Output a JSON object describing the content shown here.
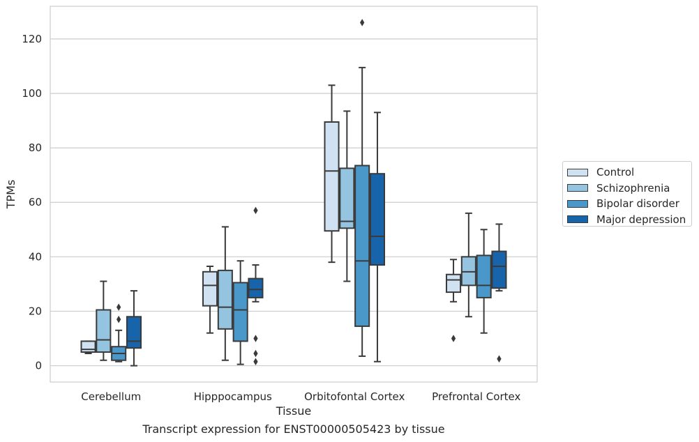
{
  "chart_data": {
    "type": "box",
    "caption": "Transcript expression for ENST00000505423 by tissue",
    "xlabel": "Tissue",
    "ylabel": "TPMs",
    "ylim": [
      -6,
      132
    ],
    "yticks": [
      0,
      20,
      40,
      60,
      80,
      100,
      120
    ],
    "grid": true,
    "legend_position": "right",
    "categories": [
      "Cerebellum",
      "Hipppocampus",
      "Orbitofontal Cortex",
      "Prefrontal Cortex"
    ],
    "series": [
      {
        "name": "Control",
        "color": "#d0e1f2",
        "boxes": [
          {
            "whisker_low": 4.5,
            "q1": 5,
            "median": 6,
            "q3": 9,
            "whisker_high": 9,
            "outliers": []
          },
          {
            "whisker_low": 12,
            "q1": 22,
            "median": 29.5,
            "q3": 34.5,
            "whisker_high": 36.5,
            "outliers": []
          },
          {
            "whisker_low": 38,
            "q1": 49.5,
            "median": 71.5,
            "q3": 89.5,
            "whisker_high": 103,
            "outliers": []
          },
          {
            "whisker_low": 23.5,
            "q1": 27,
            "median": 31.5,
            "q3": 33.5,
            "whisker_high": 39,
            "outliers": [
              10
            ]
          }
        ]
      },
      {
        "name": "Schizophrenia",
        "color": "#94c4df",
        "boxes": [
          {
            "whisker_low": 2,
            "q1": 5,
            "median": 9.5,
            "q3": 20.5,
            "whisker_high": 31,
            "outliers": []
          },
          {
            "whisker_low": 2,
            "q1": 13.5,
            "median": 21.5,
            "q3": 35,
            "whisker_high": 51,
            "outliers": []
          },
          {
            "whisker_low": 31,
            "q1": 50.5,
            "median": 53,
            "q3": 72.5,
            "whisker_high": 93.5,
            "outliers": []
          },
          {
            "whisker_low": 18,
            "q1": 29.5,
            "median": 34.5,
            "q3": 40,
            "whisker_high": 56,
            "outliers": []
          }
        ]
      },
      {
        "name": "Bipolar disorder",
        "color": "#4a98c9",
        "boxes": [
          {
            "whisker_low": 1.5,
            "q1": 2,
            "median": 4.5,
            "q3": 7,
            "whisker_high": 13,
            "outliers": [
              17,
              21.5
            ]
          },
          {
            "whisker_low": 0.5,
            "q1": 9,
            "median": 20.5,
            "q3": 30.5,
            "whisker_high": 38.5,
            "outliers": []
          },
          {
            "whisker_low": 3.5,
            "q1": 14.5,
            "median": 38.5,
            "q3": 73.5,
            "whisker_high": 109.5,
            "outliers": [
              126
            ]
          },
          {
            "whisker_low": 12,
            "q1": 25,
            "median": 29.5,
            "q3": 40.5,
            "whisker_high": 50,
            "outliers": []
          }
        ]
      },
      {
        "name": "Major depression",
        "color": "#1764ab",
        "boxes": [
          {
            "whisker_low": 0,
            "q1": 6.5,
            "median": 9,
            "q3": 18,
            "whisker_high": 27.5,
            "outliers": []
          },
          {
            "whisker_low": 23.5,
            "q1": 25,
            "median": 28,
            "q3": 32,
            "whisker_high": 37,
            "outliers": [
              57,
              10,
              4.5,
              1.5
            ]
          },
          {
            "whisker_low": 1.5,
            "q1": 37,
            "median": 47.5,
            "q3": 70.5,
            "whisker_high": 93,
            "outliers": []
          },
          {
            "whisker_low": 27.5,
            "q1": 28.5,
            "median": 36.5,
            "q3": 42,
            "whisker_high": 52,
            "outliers": [
              2.5
            ]
          }
        ]
      }
    ]
  }
}
